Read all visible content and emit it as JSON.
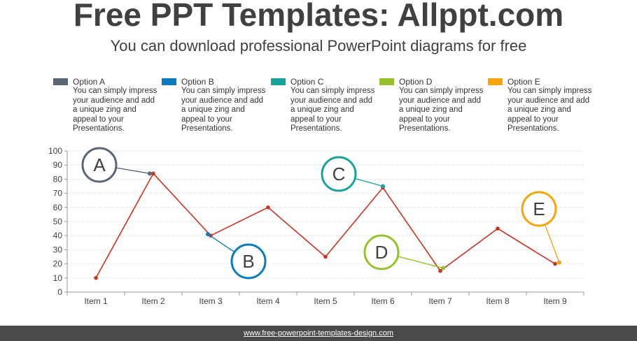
{
  "header": {
    "title": "Free PPT Templates: Allppt.com",
    "subtitle": "You can download professional PowerPoint diagrams for free"
  },
  "legend": [
    {
      "name": "Option A",
      "color": "#5a6676",
      "desc": "You can simply impress your audience and add a unique zing and appeal to your Presentations."
    },
    {
      "name": "Option B",
      "color": "#0b7bbf",
      "desc": "You can simply impress your audience and add a unique zing and appeal to your Presentations."
    },
    {
      "name": "Option C",
      "color": "#17a39a",
      "desc": "You can simply impress your audience and add a unique zing and appeal to your Presentations."
    },
    {
      "name": "Option D",
      "color": "#95c22c",
      "desc": "You can simply impress your audience and add a unique zing and appeal to your Presentations."
    },
    {
      "name": "Option E",
      "color": "#f5a40c",
      "desc": "You can simply impress your audience and add a unique zing and appeal to your Presentations."
    }
  ],
  "chart_data": {
    "type": "line",
    "categories": [
      "Item 1",
      "Item 2",
      "Item 3",
      "Item 4",
      "Item 5",
      "Item 6",
      "Item 7",
      "Item 8",
      "Item 9"
    ],
    "series": [
      {
        "values": [
          10,
          84,
          40,
          60,
          25,
          74,
          15,
          45,
          20
        ],
        "color": "#c8321e"
      }
    ],
    "ylim": [
      0,
      100
    ],
    "yticks": [
      0,
      10,
      20,
      30,
      40,
      50,
      60,
      70,
      80,
      90,
      100
    ],
    "grid": true,
    "callouts": [
      {
        "label": "A",
        "item": 2,
        "value": 84,
        "color": "#5a6676"
      },
      {
        "label": "B",
        "item": 3,
        "value": 41,
        "color": "#0b7bbf"
      },
      {
        "label": "C",
        "item": 6,
        "value": 75,
        "color": "#17a39a"
      },
      {
        "label": "D",
        "item": 7,
        "value": 17,
        "color": "#95c22c"
      },
      {
        "label": "E",
        "item": 9,
        "value": 21,
        "color": "#f5a40c"
      }
    ]
  },
  "footer": {
    "url": "www.free-powerpoint-templates-design.com"
  }
}
